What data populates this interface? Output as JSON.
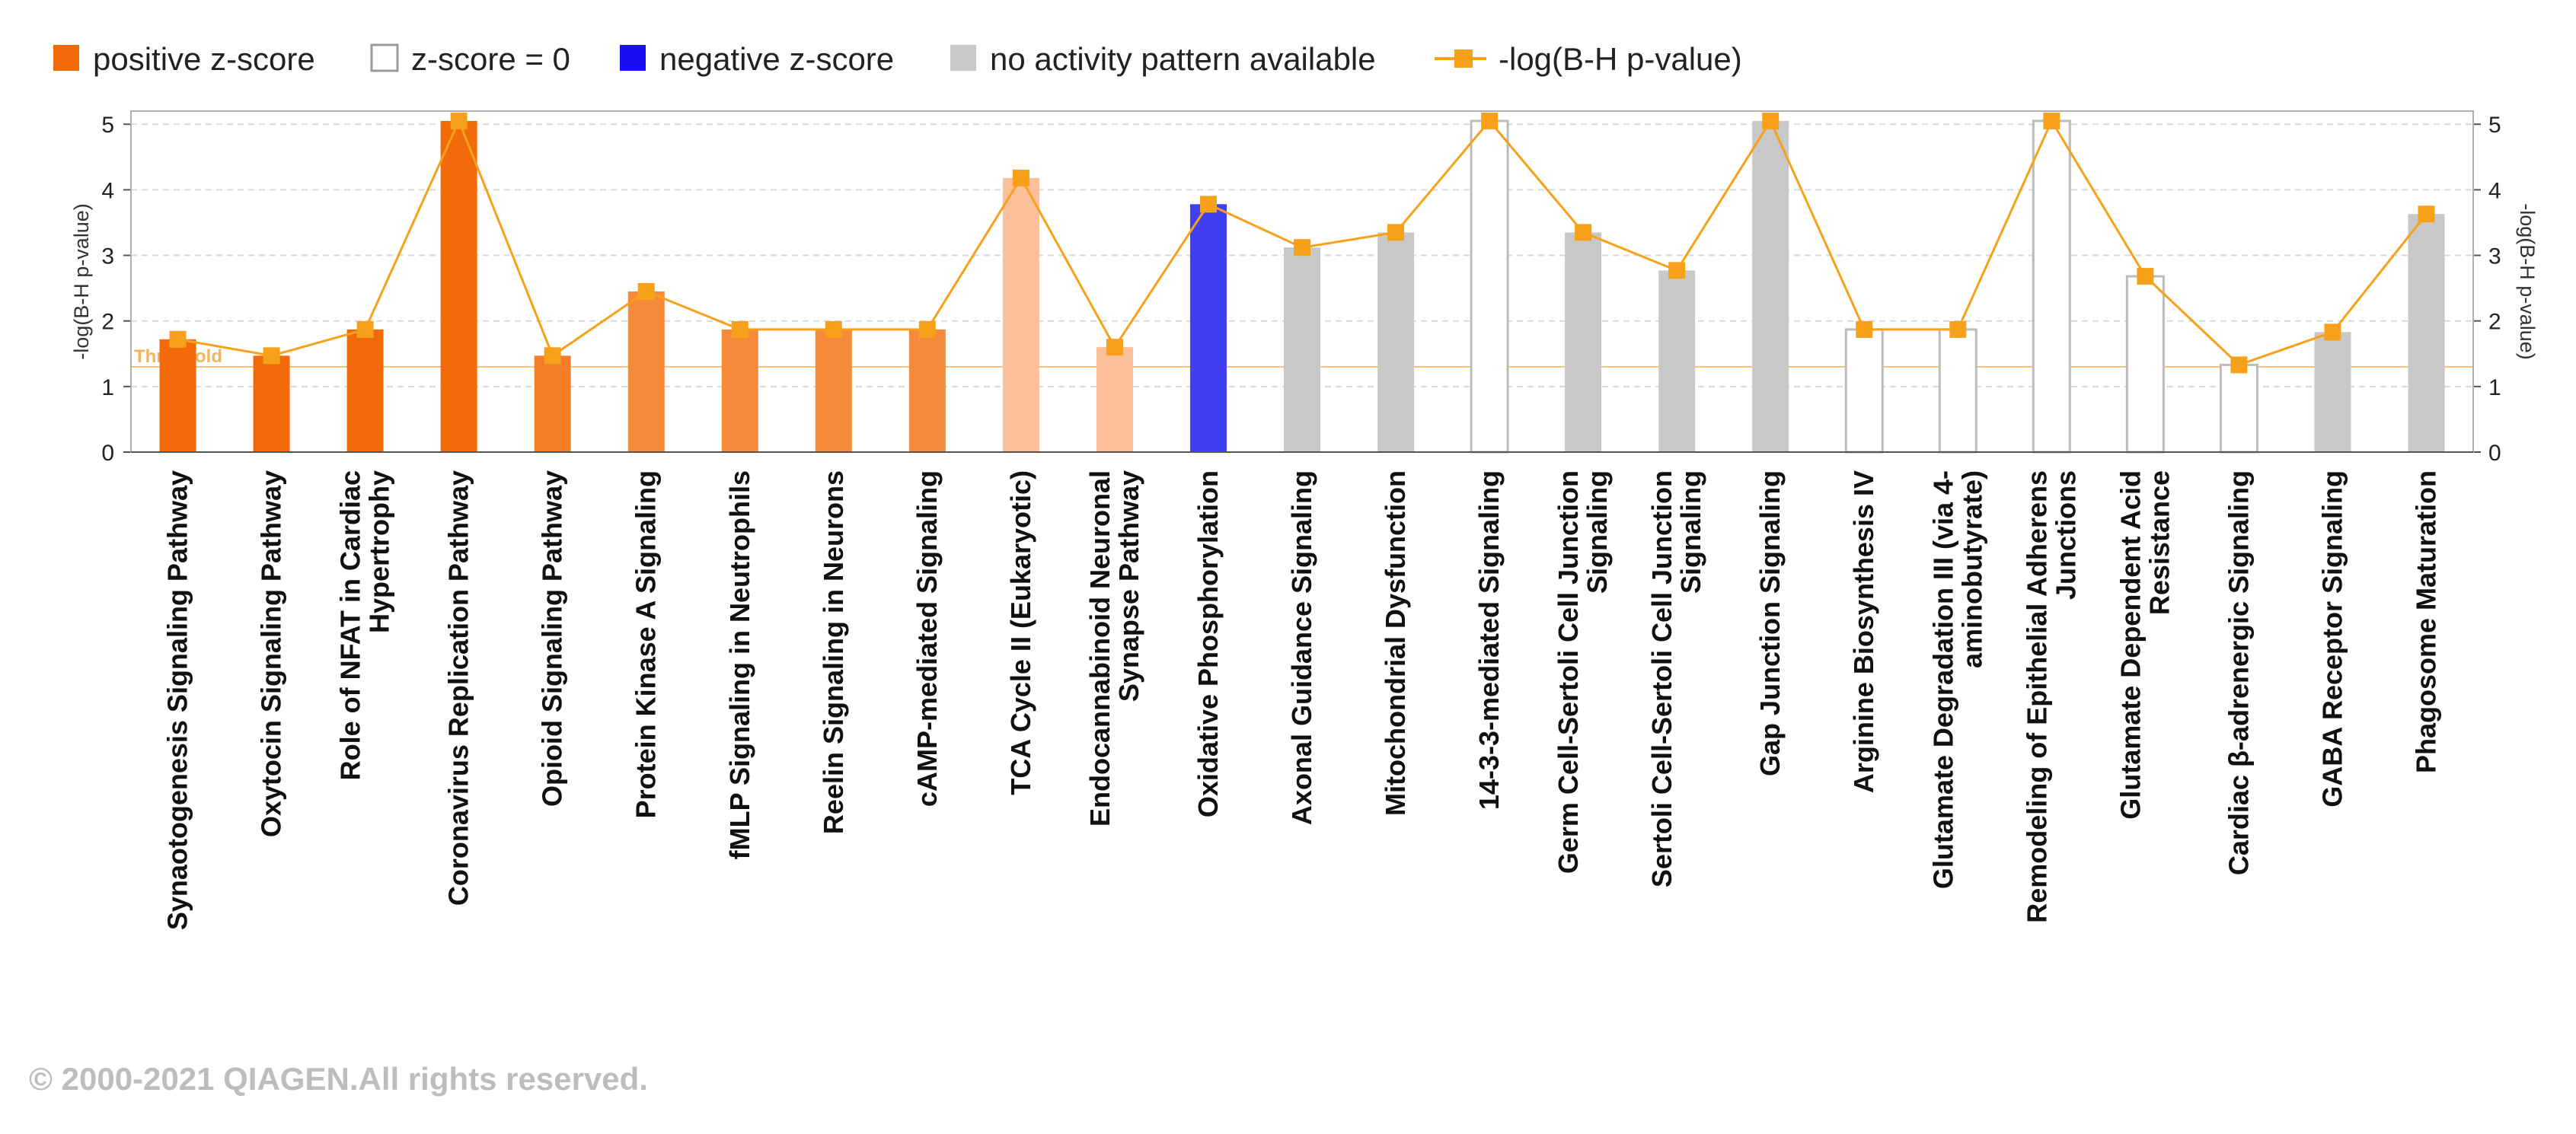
{
  "legend": [
    {
      "label": "positive z-score",
      "kind": "box",
      "color": "#f26a0a"
    },
    {
      "label": "z-score = 0",
      "kind": "box-outline",
      "color": "#ffffff",
      "stroke": "#9a9a9a"
    },
    {
      "label": "negative z-score",
      "kind": "box",
      "color": "#1b0df5"
    },
    {
      "label": "no activity pattern available",
      "kind": "box",
      "color": "#c8c8c8"
    },
    {
      "label": "-log(B-H p-value)",
      "kind": "line",
      "color": "#f7a11b"
    }
  ],
  "copyright": "© 2000-2021 QIAGEN.All rights reserved.",
  "chart_data": {
    "type": "bar",
    "title": "",
    "ylabel": "-log(B-H p-value)",
    "y2label": "-log(B-H p-value)",
    "ylim": [
      0,
      5.2
    ],
    "yticks": [
      "0",
      "1",
      "2",
      "3",
      "4",
      "5"
    ],
    "threshold": {
      "label": "Threshold",
      "value": 1.3
    },
    "grid": true,
    "legend_position": "top-left",
    "categories": [
      "Synaotogenesis Signaling Pathway",
      "Oxytocin Signaling Pathway",
      "Role of NFAT in Cardiac Hypertrophy",
      "Coronavirus Replication Pathway",
      "Opioid Signaling Pathway",
      "Protein Kinase A Signaling",
      "fMLP Signaling in Neutrophils",
      "Reelin Signaling in Neurons",
      "cAMP-mediated Signaling",
      "TCA Cycle II (Eukaryotic)",
      "Endocannabinoid Neuronal Synapse Pathway",
      "Oxidative Phosphorylation",
      "Axonal Guidance Signaling",
      "Mitochondrial Dysfunction",
      "14-3-3-mediated Signaling",
      "Germ Cell-Sertoli Cell Junction Signaling",
      "Sertoli Cell-Sertoli Cell Junction Signaling",
      "Gap Junction Signaling",
      "Arginine Biosynthesis IV",
      "Glutamate Degradation III (via 4-aminobutyrate)",
      "Remodeling of Epithelial Adherens Junctions",
      "Glutamate Dependent Acid Resistance",
      "Cardiac β-adrenergic Signaling",
      "GABA Receptor Signaling",
      "Phagosome Maturation"
    ],
    "category_lines": [
      [
        "Synaotogenesis Signaling Pathway"
      ],
      [
        "Oxytocin Signaling Pathway"
      ],
      [
        "Role of NFAT in Cardiac",
        "Hypertrophy"
      ],
      [
        "Coronavirus Replication Pathway"
      ],
      [
        "Opioid Signaling Pathway"
      ],
      [
        "Protein Kinase A Signaling"
      ],
      [
        "fMLP Signaling in Neutrophils"
      ],
      [
        "Reelin Signaling in Neurons"
      ],
      [
        "cAMP-mediated Signaling"
      ],
      [
        "TCA Cycle II (Eukaryotic)"
      ],
      [
        "Endocannabinoid Neuronal",
        "Synapse Pathway"
      ],
      [
        "Oxidative Phosphorylation"
      ],
      [
        "Axonal Guidance Signaling"
      ],
      [
        "Mitochondrial Dysfunction"
      ],
      [
        "14-3-3-mediated Signaling"
      ],
      [
        "Germ Cell-Sertoli Cell Junction",
        "Signaling"
      ],
      [
        "Sertoli Cell-Sertoli Cell Junction",
        "Signaling"
      ],
      [
        "Gap Junction Signaling"
      ],
      [
        "Arginine Biosynthesis IV"
      ],
      [
        "Glutamate Degradation III (via 4-",
        "aminobutyrate)"
      ],
      [
        "Remodeling of Epithelial Adherens",
        "Junctions"
      ],
      [
        "Glutamate Dependent Acid",
        "Resistance"
      ],
      [
        "Cardiac β-adrenergic Signaling"
      ],
      [
        "GABA Receptor Signaling"
      ],
      [
        "Phagosome Maturation"
      ]
    ],
    "values": [
      1.72,
      1.47,
      1.87,
      5.05,
      1.47,
      2.45,
      1.87,
      1.87,
      1.87,
      4.18,
      1.6,
      3.78,
      3.12,
      3.35,
      5.05,
      3.35,
      2.77,
      5.05,
      1.87,
      1.87,
      5.05,
      2.68,
      1.33,
      1.83,
      3.63
    ],
    "bar_colors": [
      "#f26a0a",
      "#f26a0a",
      "#f26a0a",
      "#f26a0a",
      "#f37d28",
      "#f58a3a",
      "#f58a3a",
      "#f58a3a",
      "#f58a3a",
      "#fbbf99",
      "#fbbf99",
      "#4040f0",
      "#c8c8c8",
      "#c8c8c8",
      "#ffffff",
      "#c8c8c8",
      "#c8c8c8",
      "#c8c8c8",
      "#ffffff",
      "#ffffff",
      "#ffffff",
      "#ffffff",
      "#ffffff",
      "#c8c8c8",
      "#c8c8c8"
    ],
    "line_color": "#f7a11b"
  }
}
